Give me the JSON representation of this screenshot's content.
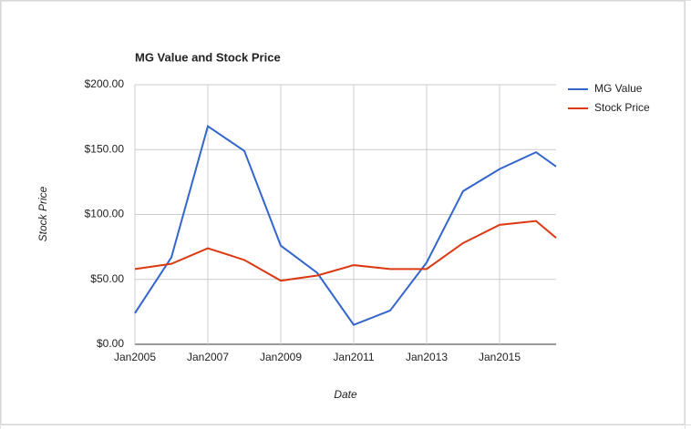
{
  "chart_data": {
    "type": "line",
    "title": "MG Value and Stock Price",
    "x_label": "Date",
    "y_label": "Stock Price",
    "x": [
      2005,
      2006,
      2007,
      2008,
      2009,
      2010,
      2011,
      2012,
      2013,
      2014,
      2015,
      2016,
      2016.55
    ],
    "xlim": [
      2005,
      2016.55
    ],
    "xticks": [
      {
        "value": 2005,
        "label": "Jan2005"
      },
      {
        "value": 2007,
        "label": "Jan2007"
      },
      {
        "value": 2009,
        "label": "Jan2009"
      },
      {
        "value": 2011,
        "label": "Jan2011"
      },
      {
        "value": 2013,
        "label": "Jan2013"
      },
      {
        "value": 2015,
        "label": "Jan2015"
      }
    ],
    "ylim": [
      0,
      200
    ],
    "yticks": [
      {
        "value": 0,
        "label": "$0.00"
      },
      {
        "value": 50,
        "label": "$50.00"
      },
      {
        "value": 100,
        "label": "$100.00"
      },
      {
        "value": 150,
        "label": "$150.00"
      },
      {
        "value": 200,
        "label": "$200.00"
      }
    ],
    "grid": true,
    "legend": "right",
    "series": [
      {
        "name": "MG Value",
        "color": "#3366cc",
        "values": [
          24,
          67,
          168,
          149,
          76,
          55,
          15,
          26,
          63,
          118,
          135,
          148,
          137
        ]
      },
      {
        "name": "Stock Price",
        "color": "#dc3912",
        "values": [
          58,
          62,
          74,
          65,
          49,
          53,
          61,
          58,
          58,
          78,
          92,
          95,
          82
        ]
      }
    ]
  }
}
